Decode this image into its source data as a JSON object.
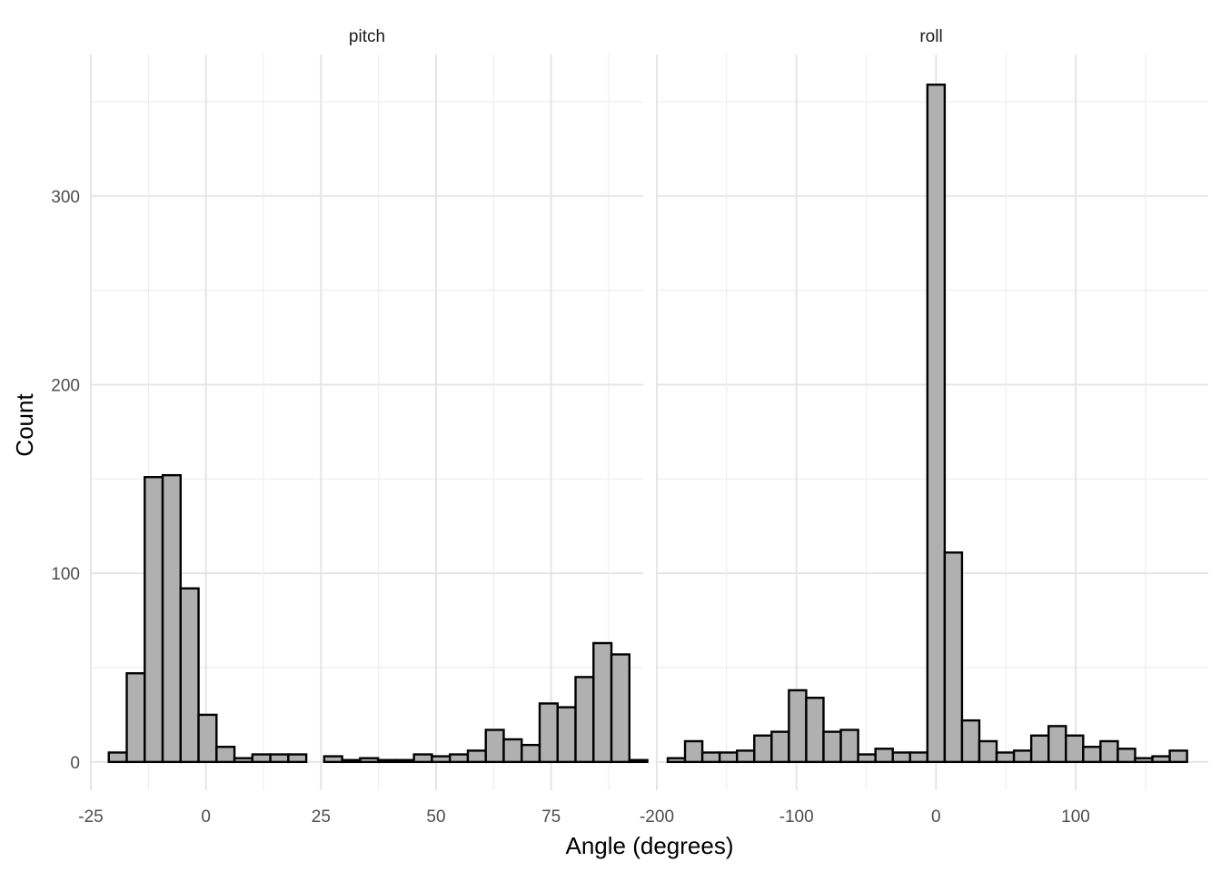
{
  "chart_data": {
    "type": "bar",
    "xlabel": "Angle (degrees)",
    "ylabel": "Count",
    "y_ticks": [
      0,
      100,
      200,
      300
    ],
    "ylim": [
      -15,
      375
    ],
    "grid": true,
    "bar_fill": "#b0b0b0",
    "bar_stroke": "#000000",
    "panels": [
      {
        "name": "pitch",
        "xlim": [
          -25,
          95
        ],
        "x_ticks": [
          -25,
          0,
          25,
          50,
          75
        ],
        "x_tick_labels": [
          "-25",
          "0",
          "25",
          "50",
          "75"
        ],
        "bin_width": 3.9,
        "bin_start": -21.1,
        "values": [
          5,
          47,
          151,
          152,
          92,
          25,
          8,
          2,
          4,
          4,
          4,
          0,
          3,
          1,
          2,
          1,
          1,
          4,
          3,
          4,
          6,
          17,
          12,
          9,
          31,
          29,
          45,
          63,
          57,
          1
        ]
      },
      {
        "name": "roll",
        "xlim": [
          -200,
          195
        ],
        "x_ticks": [
          -200,
          -100,
          0,
          100
        ],
        "x_tick_labels": [
          "-200",
          "-100",
          "0",
          "100"
        ],
        "bin_width": 12.4,
        "bin_start": -192.2,
        "values": [
          2,
          11,
          5,
          5,
          6,
          14,
          16,
          38,
          34,
          16,
          17,
          4,
          7,
          5,
          5,
          359,
          111,
          22,
          11,
          5,
          6,
          14,
          19,
          14,
          8,
          11,
          7,
          2,
          3,
          6
        ]
      }
    ]
  }
}
